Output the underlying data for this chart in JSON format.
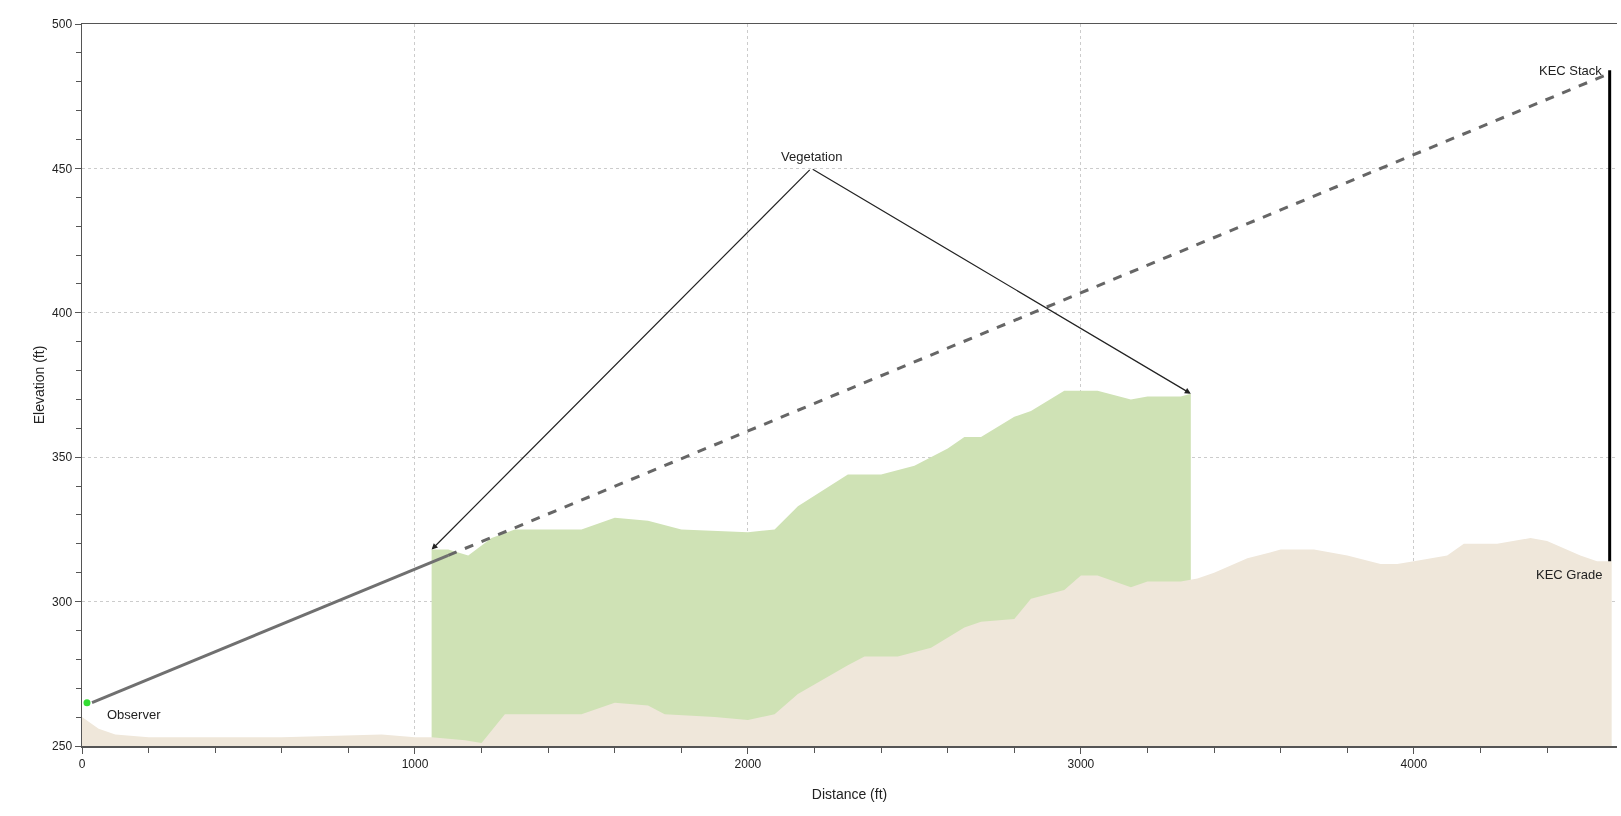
{
  "chart_data": {
    "type": "area",
    "xlabel": "Distance (ft)",
    "ylabel": "Elevation (ft)",
    "xlim": [
      0,
      4610
    ],
    "ylim": [
      250,
      500
    ],
    "xticks": [
      0,
      {
        "value": 200,
        "label": null
      },
      {
        "value": 400,
        "label": null
      },
      {
        "value": 600,
        "label": null
      },
      {
        "value": 800,
        "label": null
      },
      1000,
      {
        "value": 1200,
        "label": null
      },
      {
        "value": 1400,
        "label": null
      },
      {
        "value": 1600,
        "label": null
      },
      {
        "value": 1800,
        "label": null
      },
      2000,
      {
        "value": 2200,
        "label": null
      },
      {
        "value": 2400,
        "label": null
      },
      {
        "value": 2600,
        "label": null
      },
      {
        "value": 2800,
        "label": null
      },
      3000,
      {
        "value": 3200,
        "label": null
      },
      {
        "value": 3400,
        "label": null
      },
      {
        "value": 3600,
        "label": null
      },
      {
        "value": 3800,
        "label": null
      },
      4000,
      {
        "value": 4200,
        "label": null
      },
      {
        "value": 4400,
        "label": null
      }
    ],
    "yticks": [
      250,
      {
        "value": 260,
        "label": null
      },
      {
        "value": 270,
        "label": null
      },
      {
        "value": 280,
        "label": null
      },
      {
        "value": 290,
        "label": null
      },
      300,
      {
        "value": 310,
        "label": null
      },
      {
        "value": 320,
        "label": null
      },
      {
        "value": 330,
        "label": null
      },
      {
        "value": 340,
        "label": null
      },
      350,
      {
        "value": 360,
        "label": null
      },
      {
        "value": 370,
        "label": null
      },
      {
        "value": 380,
        "label": null
      },
      {
        "value": 390,
        "label": null
      },
      400,
      {
        "value": 410,
        "label": null
      },
      {
        "value": 420,
        "label": null
      },
      {
        "value": 430,
        "label": null
      },
      {
        "value": 440,
        "label": null
      },
      450,
      {
        "value": 460,
        "label": null
      },
      {
        "value": 470,
        "label": null
      },
      {
        "value": 480,
        "label": null
      },
      {
        "value": 490,
        "label": null
      },
      500
    ],
    "grid": true,
    "marker": "none",
    "series": [
      {
        "color": "#cfe2b5",
        "x": [
          1050,
          1100,
          1160,
          1230,
          1300,
          1500,
          1600,
          1700,
          1800,
          2000,
          2080,
          2150,
          2300,
          2400,
          2500,
          2600,
          2650,
          2700,
          2800,
          2850,
          2950,
          3050,
          3150,
          3200,
          3300,
          3330
        ],
        "values": [
          318,
          318,
          316,
          322,
          325,
          325,
          329,
          328,
          325,
          324,
          325,
          333,
          344,
          344,
          347,
          353,
          357,
          357,
          364,
          366,
          373,
          373,
          370,
          371,
          371,
          372
        ]
      },
      {
        "color": "#efe7da",
        "x": [
          0,
          50,
          100,
          200,
          600,
          900,
          1000,
          1050,
          1150,
          1200,
          1270,
          1500,
          1600,
          1700,
          1750,
          1900,
          2000,
          2080,
          2150,
          2300,
          2350,
          2450,
          2550,
          2650,
          2700,
          2800,
          2850,
          2950,
          3000,
          3050,
          3150,
          3200,
          3300,
          3350,
          3400,
          3500,
          3600,
          3700,
          3800,
          3900,
          3950,
          4000,
          4100,
          4150,
          4250,
          4350,
          4400,
          4500,
          4550,
          4594
        ],
        "values": [
          260,
          256,
          254,
          253,
          253,
          254,
          253,
          253,
          252,
          251,
          261,
          261,
          265,
          264,
          261,
          260,
          259,
          261,
          268,
          278,
          281,
          281,
          284,
          291,
          293,
          294,
          301,
          304,
          309,
          309,
          305,
          307,
          307,
          308,
          310,
          315,
          318,
          318,
          316,
          313,
          313,
          314,
          316,
          320,
          320,
          322,
          321,
          316,
          314,
          314
        ]
      },
      {
        "type": "line",
        "color": "#707070",
        "line_style": "solid",
        "x": [
          30,
          1100
        ],
        "values": [
          265,
          316
        ]
      },
      {
        "type": "line",
        "color": "#666666",
        "line_style": "dashed",
        "x": [
          1100,
          4590
        ],
        "values": [
          316,
          483
        ]
      },
      {
        "type": "line",
        "color": "#000000",
        "line_style": "solid",
        "x": [
          4588,
          4588
        ],
        "values": [
          314,
          484
        ]
      },
      {
        "type": "scatter",
        "color": "#33dd33",
        "marker": "circle",
        "x": [
          15
        ],
        "values": [
          265
        ]
      }
    ],
    "annotations": [
      {
        "text": "Vegetation",
        "x": 1050,
        "y": 318
      },
      {
        "text": "Observer",
        "x": 15,
        "y": 265
      },
      {
        "text": "KEC Stack",
        "x": 4588,
        "y": 484
      },
      {
        "text": "KEC Grade",
        "x": 4588,
        "y": 314
      }
    ]
  }
}
